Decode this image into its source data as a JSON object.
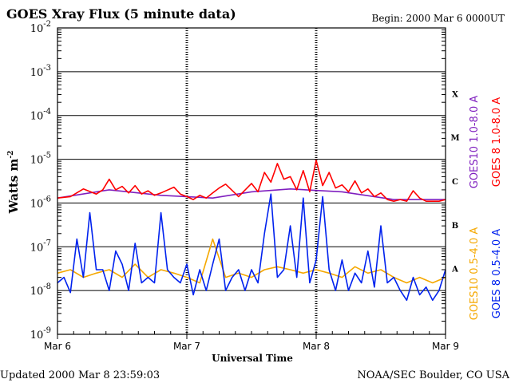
{
  "chart_data": {
    "type": "line",
    "title": "GOES Xray Flux (5 minute data)",
    "begin": "Begin:  2000 Mar 6 0000UT",
    "xlabel": "Universal Time",
    "ylabel": "Watts m",
    "ylabel_exponent": "-2",
    "yscale": "log",
    "ylim": [
      1e-09,
      0.01
    ],
    "y_ticks": [
      {
        "value": 0.01,
        "base": "10",
        "exp": "-2"
      },
      {
        "value": 0.001,
        "base": "10",
        "exp": "-3"
      },
      {
        "value": 0.0001,
        "base": "10",
        "exp": "-4"
      },
      {
        "value": 1e-05,
        "base": "10",
        "exp": "-5"
      },
      {
        "value": 1e-06,
        "base": "10",
        "exp": "-6"
      },
      {
        "value": 1e-07,
        "base": "10",
        "exp": "-7"
      },
      {
        "value": 1e-08,
        "base": "10",
        "exp": "-8"
      },
      {
        "value": 1e-09,
        "base": "10",
        "exp": "-9"
      }
    ],
    "xlim_days": [
      0,
      3
    ],
    "x_ticks": [
      {
        "day": 0,
        "label": "Mar 6"
      },
      {
        "day": 1,
        "label": "Mar 7"
      },
      {
        "day": 2,
        "label": "Mar 8"
      },
      {
        "day": 3,
        "label": "Mar 9"
      }
    ],
    "flare_classes": [
      {
        "label": "X",
        "value": 0.000316
      },
      {
        "label": "M",
        "value": 3.16e-05
      },
      {
        "label": "C",
        "value": 3.16e-06
      },
      {
        "label": "B",
        "value": 3.16e-07
      },
      {
        "label": "A",
        "value": 3.16e-08
      }
    ],
    "series": [
      {
        "name": "GOES 8 1.0-8.0 A",
        "color": "#ff0000",
        "x": [
          0,
          0.1,
          0.2,
          0.3,
          0.35,
          0.4,
          0.45,
          0.5,
          0.55,
          0.6,
          0.65,
          0.7,
          0.75,
          0.8,
          0.9,
          0.95,
          1.0,
          1.05,
          1.1,
          1.15,
          1.2,
          1.25,
          1.3,
          1.4,
          1.5,
          1.55,
          1.6,
          1.65,
          1.7,
          1.75,
          1.8,
          1.85,
          1.9,
          1.95,
          2.0,
          2.05,
          2.1,
          2.15,
          2.2,
          2.25,
          2.3,
          2.35,
          2.4,
          2.45,
          2.5,
          2.55,
          2.6,
          2.65,
          2.7,
          2.75,
          2.8,
          2.85,
          2.9,
          2.95,
          3.0
        ],
        "values": [
          1.3e-06,
          1.4e-06,
          2.1e-06,
          1.6e-06,
          2e-06,
          3.5e-06,
          2e-06,
          2.4e-06,
          1.7e-06,
          2.5e-06,
          1.6e-06,
          1.9e-06,
          1.5e-06,
          1.7e-06,
          2.3e-06,
          1.6e-06,
          1.4e-06,
          1.2e-06,
          1.5e-06,
          1.3e-06,
          1.7e-06,
          2.2e-06,
          2.7e-06,
          1.4e-06,
          2.8e-06,
          1.8e-06,
          5e-06,
          3e-06,
          8e-06,
          3.5e-06,
          4e-06,
          2e-06,
          5.5e-06,
          1.8e-06,
          9.5e-06,
          2.5e-06,
          5e-06,
          2.2e-06,
          2.6e-06,
          1.8e-06,
          3.2e-06,
          1.7e-06,
          2.1e-06,
          1.4e-06,
          1.7e-06,
          1.2e-06,
          1.1e-06,
          1.2e-06,
          1.1e-06,
          1.9e-06,
          1.3e-06,
          1.1e-06,
          1.1e-06,
          1.1e-06,
          1.2e-06
        ]
      },
      {
        "name": "GOES10 1.0-8.0 A",
        "color": "#7f1fbf",
        "x": [
          0,
          0.4,
          0.8,
          1.2,
          1.5,
          1.8,
          2.2,
          2.6,
          3.0
        ],
        "values": [
          1.3e-06,
          2e-06,
          1.5e-06,
          1.3e-06,
          1.8e-06,
          2.1e-06,
          1.8e-06,
          1.2e-06,
          1.2e-06
        ]
      },
      {
        "name": "GOES 8 0.5-4.0 A",
        "color": "#0022ee",
        "x": [
          0,
          0.05,
          0.1,
          0.15,
          0.2,
          0.25,
          0.3,
          0.35,
          0.4,
          0.45,
          0.5,
          0.55,
          0.6,
          0.65,
          0.7,
          0.75,
          0.8,
          0.85,
          0.9,
          0.95,
          1.0,
          1.05,
          1.1,
          1.15,
          1.2,
          1.25,
          1.3,
          1.35,
          1.4,
          1.45,
          1.5,
          1.55,
          1.6,
          1.65,
          1.7,
          1.75,
          1.8,
          1.85,
          1.9,
          1.95,
          2.0,
          2.05,
          2.1,
          2.15,
          2.2,
          2.25,
          2.3,
          2.35,
          2.4,
          2.45,
          2.5,
          2.55,
          2.6,
          2.65,
          2.7,
          2.75,
          2.8,
          2.85,
          2.9,
          2.95,
          3.0
        ],
        "values": [
          1.5e-08,
          2e-08,
          9e-09,
          1.5e-07,
          2e-08,
          6e-07,
          3e-08,
          3e-08,
          1e-08,
          8e-08,
          4e-08,
          1e-08,
          1.2e-07,
          1.5e-08,
          2e-08,
          1.5e-08,
          6e-07,
          3e-08,
          2e-08,
          1.5e-08,
          4e-08,
          8e-09,
          3e-08,
          1e-08,
          4e-08,
          1.5e-07,
          1e-08,
          2e-08,
          3e-08,
          1e-08,
          3e-08,
          1.5e-08,
          2e-07,
          1.6e-06,
          2e-08,
          3e-08,
          3e-07,
          2e-08,
          1.3e-06,
          1.5e-08,
          5e-08,
          1.4e-06,
          3e-08,
          1e-08,
          5e-08,
          1e-08,
          2.5e-08,
          1.5e-08,
          8e-08,
          1.2e-08,
          3e-07,
          1.5e-08,
          2e-08,
          1e-08,
          6e-09,
          2e-08,
          8e-09,
          1.2e-08,
          6e-09,
          1e-08,
          3e-08
        ]
      },
      {
        "name": "GOES10 0.5-4.0 A",
        "color": "#f5a800",
        "x": [
          0,
          0.1,
          0.2,
          0.3,
          0.4,
          0.5,
          0.6,
          0.7,
          0.8,
          0.9,
          1.0,
          1.1,
          1.2,
          1.3,
          1.4,
          1.5,
          1.6,
          1.7,
          1.8,
          1.9,
          2.0,
          2.1,
          2.2,
          2.3,
          2.4,
          2.5,
          2.6,
          2.7,
          2.8,
          2.9,
          3.0
        ],
        "values": [
          2.5e-08,
          3e-08,
          2e-08,
          2.5e-08,
          3e-08,
          2e-08,
          4e-08,
          2e-08,
          3e-08,
          2.5e-08,
          2e-08,
          1.5e-08,
          1.5e-07,
          2e-08,
          2.5e-08,
          2e-08,
          3e-08,
          3.5e-08,
          3e-08,
          2.5e-08,
          3e-08,
          2.5e-08,
          2e-08,
          3.5e-08,
          2.5e-08,
          3e-08,
          2e-08,
          1.5e-08,
          2e-08,
          1.5e-08,
          2e-08
        ]
      }
    ],
    "legend": [
      {
        "text": "GOES 8 1.0-8.0 A",
        "color": "#ff0000",
        "row": 0,
        "offset": "upper"
      },
      {
        "text": "GOES10 1.0-8.0 A",
        "color": "#7f1fbf",
        "row": 1,
        "offset": "upper"
      },
      {
        "text": "GOES 8 0.5-4.0 A",
        "color": "#0022ee",
        "row": 0,
        "offset": "lower"
      },
      {
        "text": "GOES10 0.5-4.0 A",
        "color": "#f5a800",
        "row": 1,
        "offset": "lower"
      }
    ]
  },
  "footer": {
    "updated": "Updated 2000 Mar  8 23:59:03",
    "source": "NOAA/SEC Boulder, CO USA"
  }
}
